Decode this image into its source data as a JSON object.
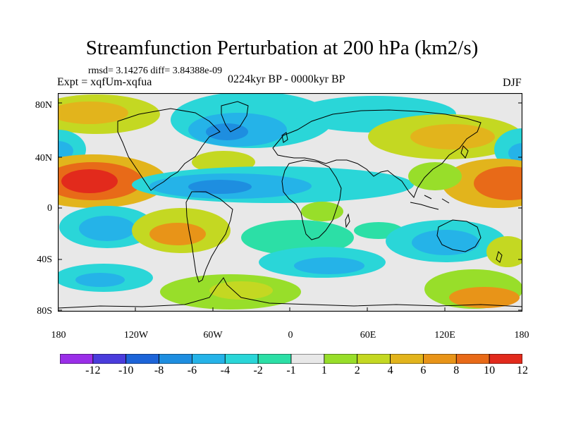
{
  "figure": {
    "title": "Streamfunction Perturbation at 200 hPa (km2/s)",
    "stats": "rmsd= 3.14276 diff= 3.84388e-09",
    "experiment": "Expt = xqfUm-xqfua",
    "period": "0224kyr BP - 0000kyr BP",
    "season": "DJF"
  },
  "map": {
    "lat_labels": [
      "80N",
      "40N",
      "0",
      "40S",
      "80S"
    ],
    "lon_labels": [
      "180",
      "120W",
      "60W",
      "0",
      "60E",
      "120E",
      "180"
    ]
  },
  "colorbar": {
    "colors": [
      "#9a2ee8",
      "#4a3cdc",
      "#1d64d8",
      "#1e8ee0",
      "#25b3e8",
      "#2ad6d8",
      "#2cdfa6",
      "#e8e8e8",
      "#98de2a",
      "#c4d822",
      "#e2b41c",
      "#e89418",
      "#e86a18",
      "#e22a1c"
    ],
    "labels": [
      "-12",
      "-10",
      "-8",
      "-6",
      "-4",
      "-2",
      "-1",
      "1",
      "2",
      "4",
      "6",
      "8",
      "10",
      "12"
    ]
  },
  "palette": {
    "neutral": "#e8e8e8",
    "pos1": "#98de2a",
    "pos2": "#c4d822",
    "pos3": "#e2b41c",
    "pos4": "#e89418",
    "pos5": "#e86a18",
    "pos6": "#e22a1c",
    "neg1": "#2cdfa6",
    "neg2": "#2ad6d8",
    "neg3": "#25b3e8",
    "neg4": "#1e8ee0",
    "neg5": "#1d64d8"
  }
}
